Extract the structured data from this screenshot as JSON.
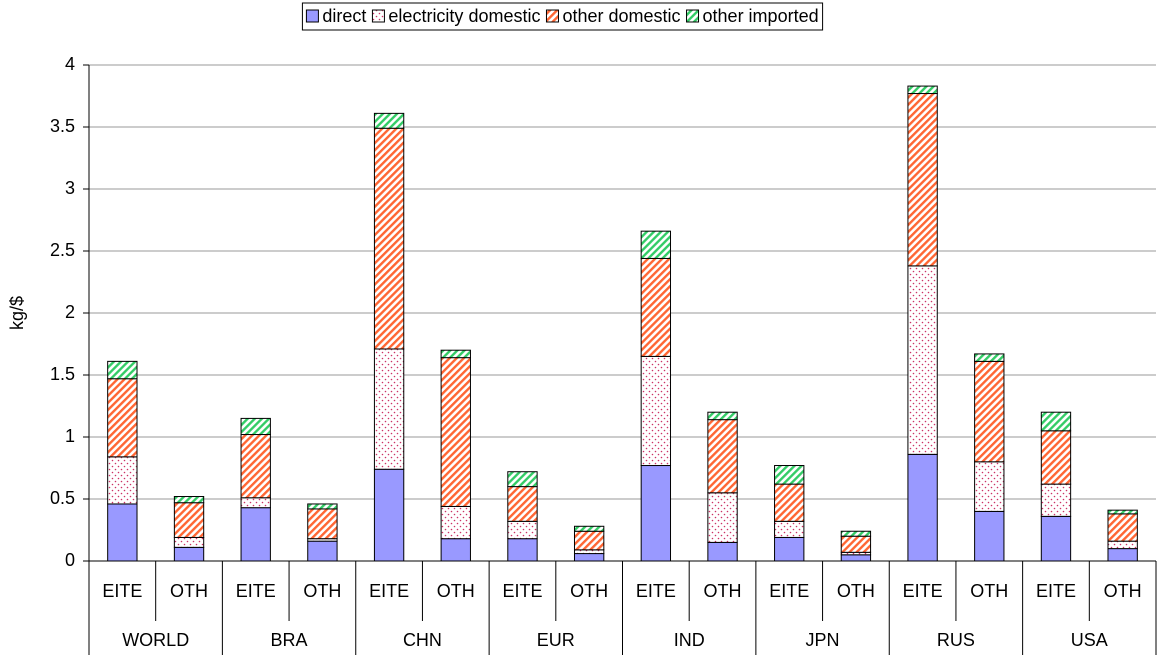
{
  "chart_data": {
    "type": "stacked_bar",
    "y_label": "kg/$",
    "groups": [
      "WORLD",
      "BRA",
      "CHN",
      "EUR",
      "IND",
      "JPN",
      "RUS",
      "USA"
    ],
    "categories": [
      "EITE",
      "OTH",
      "EITE",
      "OTH",
      "EITE",
      "OTH",
      "EITE",
      "OTH",
      "EITE",
      "OTH",
      "EITE",
      "OTH",
      "EITE",
      "OTH",
      "EITE",
      "OTH"
    ],
    "series": [
      {
        "name": "direct",
        "color": "#9999ff",
        "pattern": "solid",
        "values": [
          0.46,
          0.11,
          0.43,
          0.16,
          0.74,
          0.18,
          0.18,
          0.06,
          0.77,
          0.15,
          0.19,
          0.05,
          0.86,
          0.4,
          0.36,
          0.1
        ]
      },
      {
        "name": "electricity domestic",
        "color": "#cc3366",
        "pattern": "dots",
        "values": [
          0.38,
          0.08,
          0.08,
          0.02,
          0.97,
          0.26,
          0.14,
          0.03,
          0.88,
          0.4,
          0.13,
          0.02,
          1.52,
          0.4,
          0.26,
          0.06
        ]
      },
      {
        "name": "other domestic",
        "color": "#ff6633",
        "pattern": "diagonal",
        "values": [
          0.63,
          0.28,
          0.51,
          0.24,
          1.78,
          1.2,
          0.28,
          0.15,
          0.79,
          0.59,
          0.3,
          0.13,
          1.39,
          0.81,
          0.43,
          0.22
        ]
      },
      {
        "name": "other imported",
        "color": "#33cc66",
        "pattern": "diagonal",
        "values": [
          0.14,
          0.05,
          0.13,
          0.04,
          0.12,
          0.06,
          0.12,
          0.04,
          0.22,
          0.06,
          0.15,
          0.04,
          0.06,
          0.06,
          0.15,
          0.03
        ]
      }
    ],
    "ylim": [
      0,
      4
    ],
    "yticks": [
      0,
      0.5,
      1,
      1.5,
      2,
      2.5,
      3,
      3.5,
      4
    ],
    "grid": true,
    "legend": "top"
  }
}
